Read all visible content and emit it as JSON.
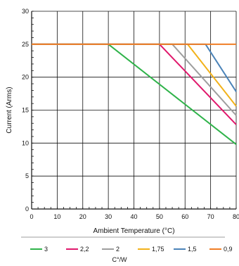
{
  "chart_data": {
    "type": "line",
    "xlabel": "Ambient Temperature (°C)",
    "ylabel": "Current (Arms)",
    "xlim": [
      0,
      80
    ],
    "ylim": [
      0,
      30
    ],
    "xticks": [
      0,
      10,
      20,
      30,
      40,
      50,
      60,
      70,
      80
    ],
    "yticks": [
      0,
      5,
      10,
      15,
      20,
      25,
      30
    ],
    "xtick_labels": [
      "0",
      "10",
      "20",
      "30",
      "40",
      "50",
      "60",
      "70",
      "80"
    ],
    "ytick_labels": [
      "0",
      "5",
      "10",
      "15",
      "20",
      "25",
      "30"
    ],
    "grid": true,
    "legend_position": "bottom",
    "legend_title": "C°/W",
    "series": [
      {
        "name": "3",
        "color": "#2fb34a",
        "x": [
          0,
          30,
          80
        ],
        "y": [
          25,
          25,
          9.8
        ]
      },
      {
        "name": "2,2",
        "color": "#e0186c",
        "x": [
          0,
          50,
          80
        ],
        "y": [
          25,
          25,
          12.8
        ]
      },
      {
        "name": "2",
        "color": "#9e9e9e",
        "x": [
          0,
          55,
          80
        ],
        "y": [
          25,
          25,
          14.2
        ]
      },
      {
        "name": "1,75",
        "color": "#f2b21a",
        "x": [
          0,
          61,
          80
        ],
        "y": [
          25,
          25,
          15.6
        ]
      },
      {
        "name": "1,5",
        "color": "#4b83b8",
        "x": [
          0,
          68,
          80
        ],
        "y": [
          25,
          25,
          17.8
        ]
      },
      {
        "name": "0,9",
        "color": "#f07e26",
        "x": [
          0,
          80
        ],
        "y": [
          25,
          25
        ]
      }
    ]
  }
}
